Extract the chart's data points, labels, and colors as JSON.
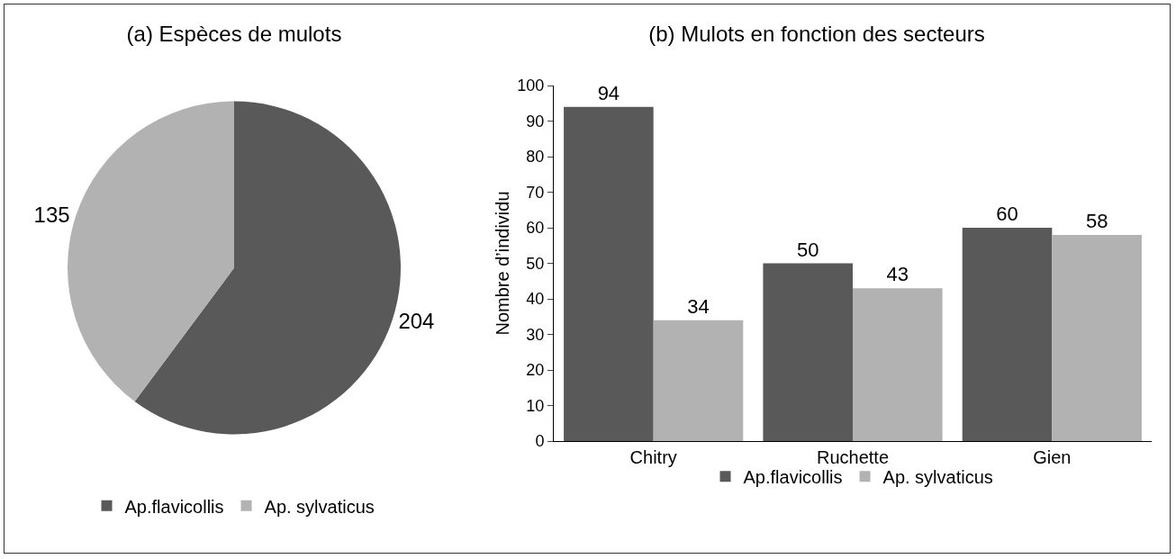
{
  "chart_data": [
    {
      "type": "pie",
      "title": "(a) Espèces de mulots",
      "categories": [
        "Ap.flavicollis",
        "Ap. sylvaticus"
      ],
      "values": [
        204,
        135
      ],
      "colors": [
        "#595959",
        "#b2b2b2"
      ],
      "data_labels": true,
      "legend": "bottom"
    },
    {
      "type": "bar",
      "title": "(b) Mulots en fonction des secteurs",
      "ylabel": "Nombre d’individu",
      "categories": [
        "Chitry",
        "Ruchette",
        "Gien"
      ],
      "series": [
        {
          "name": "Ap.flavicollis",
          "color": "#595959",
          "values": [
            94,
            50,
            60
          ]
        },
        {
          "name": "Ap. sylvaticus",
          "color": "#b2b2b2",
          "values": [
            34,
            43,
            58
          ]
        }
      ],
      "ylim": [
        0,
        100
      ],
      "yticks": [
        0,
        10,
        20,
        30,
        40,
        50,
        60,
        70,
        80,
        90,
        100
      ],
      "grid": false,
      "data_labels": true,
      "legend": "bottom"
    }
  ]
}
